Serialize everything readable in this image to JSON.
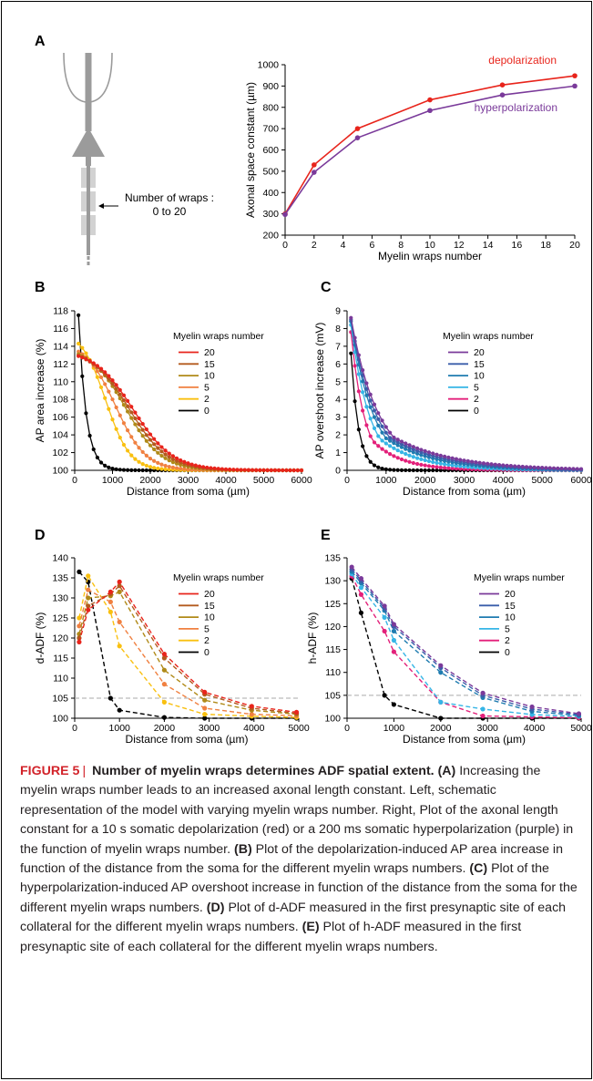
{
  "panel_labels": {
    "A": "A",
    "B": "B",
    "C": "C",
    "D": "D",
    "E": "E"
  },
  "schematic": {
    "wraps_label_1": "Number of wraps :",
    "wraps_label_2": "0 to 20"
  },
  "caption": {
    "figure_label": "FIGURE 5",
    "separator": "|",
    "title": "Number of myelin wraps determines ADF spatial extent.",
    "a_label": "(A)",
    "a_text": "Increasing the myelin wraps number leads to an increased axonal length constant. Left, schematic representation of the model with varying myelin wraps number. Right, Plot of the axonal length constant for a 10 s somatic depolarization (red) or a 200 ms somatic hyperpolarization (purple) in the function of myelin wraps number.",
    "b_label": "(B)",
    "b_text": "Plot of the depolarization-induced AP area increase in function of the distance from the soma for the different myelin wraps numbers.",
    "c_label": "(C)",
    "c_text": "Plot of the hyperpolarization-induced AP overshoot increase in function of the distance from the soma for the different myelin wraps numbers.",
    "d_label": "(D)",
    "d_text": "Plot of d-ADF measured in the first presynaptic site of each collateral for the different myelin wraps numbers.",
    "e_label": "(E)",
    "e_text": "Plot of h-ADF measured in the first presynaptic site of each collateral for the different myelin wraps numbers."
  },
  "colors": {
    "w20_red": "#e8241b",
    "w15": "#b35a1e",
    "w10": "#b08a18",
    "w5": "#f08040",
    "w2": "#f9c010",
    "w0": "#000000",
    "purple": "#7a3a9a",
    "h15": "#3a5eaa",
    "h10": "#1f7cb0",
    "h5": "#36b5e6",
    "h2": "#e3207a",
    "threshold": "#aaaaaa"
  },
  "chart_data": [
    {
      "id": "A",
      "type": "line",
      "xlabel": "Myelin wraps number",
      "ylabel": "Axonal space constant (µm)",
      "xlim": [
        0,
        20
      ],
      "ylim": [
        200,
        1000
      ],
      "xticks": [
        0,
        2,
        4,
        6,
        8,
        10,
        12,
        14,
        16,
        18,
        20
      ],
      "yticks": [
        200,
        300,
        400,
        500,
        600,
        700,
        800,
        900,
        1000
      ],
      "series": [
        {
          "name": "depolarization",
          "color": "#e8241b",
          "x": [
            0,
            2,
            5,
            10,
            15,
            20
          ],
          "y": [
            300,
            530,
            700,
            835,
            905,
            948
          ]
        },
        {
          "name": "hyperpolarization",
          "color": "#7a3a9a",
          "x": [
            0,
            2,
            5,
            10,
            15,
            20
          ],
          "y": [
            297,
            495,
            657,
            785,
            858,
            900
          ]
        }
      ]
    },
    {
      "id": "B",
      "type": "line",
      "xlabel": "Distance from soma (µm)",
      "ylabel": "AP area increase (%)",
      "xlim": [
        0,
        6000
      ],
      "ylim": [
        100,
        118
      ],
      "xticks": [
        0,
        1000,
        2000,
        3000,
        4000,
        5000,
        6000
      ],
      "yticks": [
        100,
        102,
        104,
        106,
        108,
        110,
        112,
        114,
        116,
        118
      ],
      "legend_title": "Myelin wraps number",
      "series": [
        {
          "name": "20",
          "color": "#e8241b",
          "amp": 12.9,
          "mid": 1550,
          "width": 520
        },
        {
          "name": "15",
          "color": "#b35a1e",
          "amp": 12.9,
          "mid": 1450,
          "width": 500
        },
        {
          "name": "10",
          "color": "#b08a18",
          "amp": 13.1,
          "mid": 1350,
          "width": 470
        },
        {
          "name": "5",
          "color": "#f08040",
          "amp": 13.4,
          "mid": 1080,
          "width": 400
        },
        {
          "name": "2",
          "color": "#f9c010",
          "amp": 14.3,
          "mid": 820,
          "width": 320
        },
        {
          "name": "0",
          "color": "#000000",
          "amp": 17.5,
          "decay": 200
        }
      ]
    },
    {
      "id": "C",
      "type": "line",
      "xlabel": "Distance from soma (µm)",
      "ylabel": "AP overshoot increase (mV)",
      "xlim": [
        0,
        6000
      ],
      "ylim": [
        0,
        9
      ],
      "xticks": [
        0,
        1000,
        2000,
        3000,
        4000,
        5000,
        6000
      ],
      "yticks": [
        0,
        1,
        2,
        3,
        4,
        5,
        6,
        7,
        8,
        9
      ],
      "legend_title": "Myelin wraps number",
      "series": [
        {
          "name": "20",
          "color": "#7a3a9a",
          "amp": 8.6
        },
        {
          "name": "15",
          "color": "#3a5eaa",
          "amp": 8.5
        },
        {
          "name": "10",
          "color": "#1f7cb0",
          "amp": 8.4
        },
        {
          "name": "5",
          "color": "#36b5e6",
          "amp": 8.2
        },
        {
          "name": "2",
          "color": "#e3207a",
          "amp": 7.8
        },
        {
          "name": "0",
          "color": "#000000",
          "amp": 6.6
        }
      ]
    },
    {
      "id": "D",
      "type": "line",
      "xlabel": "Distance from soma (µm)",
      "ylabel": "d-ADF (%)",
      "xlim": [
        0,
        5000
      ],
      "ylim": [
        100,
        140
      ],
      "xticks": [
        0,
        1000,
        2000,
        3000,
        4000,
        5000
      ],
      "yticks": [
        100,
        105,
        110,
        115,
        120,
        125,
        130,
        135,
        140
      ],
      "threshold": 105,
      "legend_title": "Myelin wraps number",
      "x": [
        100,
        300,
        800,
        1000,
        2000,
        2900,
        3950,
        4950
      ],
      "series": [
        {
          "name": "20",
          "color": "#e8241b",
          "y": [
            119,
            127,
            131.5,
            134,
            116,
            106.5,
            103,
            101.5
          ]
        },
        {
          "name": "15",
          "color": "#b35a1e",
          "y": [
            120,
            128,
            131,
            133,
            115,
            106,
            102.5,
            101.2
          ]
        },
        {
          "name": "10",
          "color": "#b08a18",
          "y": [
            121,
            130,
            130.5,
            131.5,
            112,
            104.5,
            102,
            101
          ]
        },
        {
          "name": "5",
          "color": "#f08040",
          "y": [
            123,
            132,
            129,
            124,
            108.5,
            102.5,
            101,
            100.6
          ]
        },
        {
          "name": "2",
          "color": "#f9c010",
          "y": [
            125,
            135.5,
            126.5,
            118,
            104,
            101,
            100.5,
            100.2
          ]
        },
        {
          "name": "0",
          "color": "#000000",
          "y": [
            136.5,
            134,
            105,
            102,
            100.2,
            100,
            100,
            100
          ]
        }
      ]
    },
    {
      "id": "E",
      "type": "line",
      "xlabel": "Distance from soma (µm)",
      "ylabel": "h-ADF (%)",
      "xlim": [
        0,
        5000
      ],
      "ylim": [
        100,
        135
      ],
      "xticks": [
        0,
        1000,
        2000,
        3000,
        4000,
        5000
      ],
      "yticks": [
        100,
        105,
        110,
        115,
        120,
        125,
        130,
        135
      ],
      "threshold": 105,
      "legend_title": "Myelin wraps number",
      "x": [
        100,
        300,
        800,
        1000,
        2000,
        2900,
        3950,
        4950
      ],
      "series": [
        {
          "name": "20",
          "color": "#7a3a9a",
          "y": [
            133,
            130.5,
            124.5,
            120.5,
            111.5,
            105.5,
            102.5,
            101
          ]
        },
        {
          "name": "15",
          "color": "#3a5eaa",
          "y": [
            132.5,
            130,
            124,
            120,
            111,
            105,
            102,
            100.8
          ]
        },
        {
          "name": "10",
          "color": "#1f7cb0",
          "y": [
            132,
            129.5,
            123.5,
            119,
            110,
            104.5,
            101.5,
            100.6
          ]
        },
        {
          "name": "5",
          "color": "#36b5e6",
          "y": [
            131.5,
            128.5,
            122,
            117,
            103.5,
            102,
            100.8,
            100.4
          ]
        },
        {
          "name": "2",
          "color": "#e3207a",
          "y": [
            131,
            127,
            119,
            114.5,
            103.5,
            100.5,
            100.3,
            100.1
          ]
        },
        {
          "name": "0",
          "color": "#000000",
          "y": [
            130.5,
            123,
            105,
            103,
            100,
            100,
            100,
            100
          ]
        }
      ]
    }
  ]
}
